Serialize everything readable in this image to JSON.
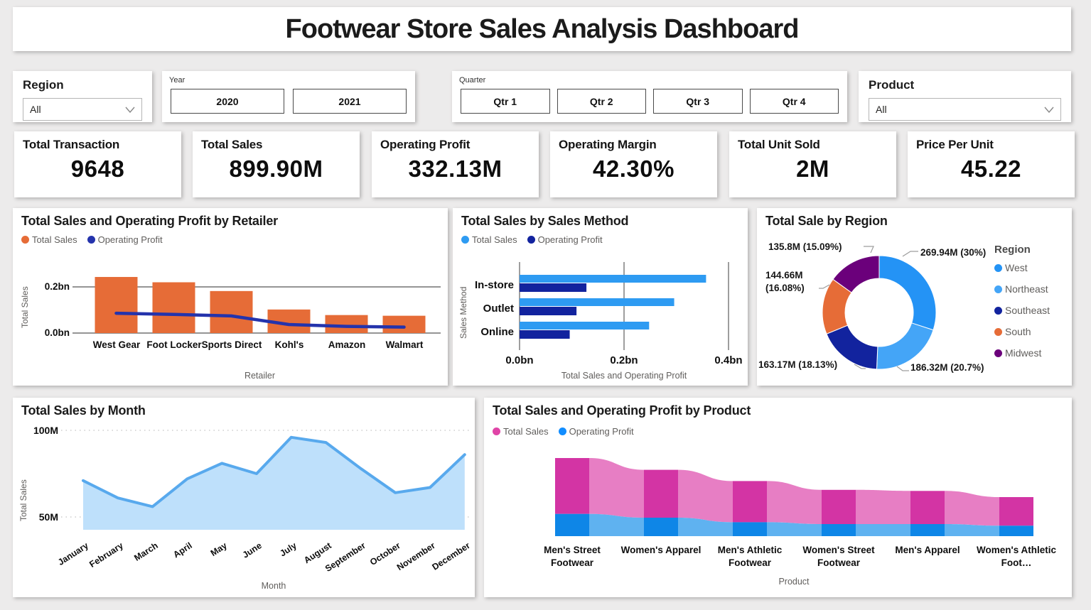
{
  "title": "Footwear Store Sales Analysis Dashboard",
  "filters": {
    "region": {
      "label": "Region",
      "value": "All"
    },
    "year": {
      "label": "Year",
      "options": [
        "2020",
        "2021"
      ]
    },
    "quarter": {
      "label": "Quarter",
      "options": [
        "Qtr 1",
        "Qtr 2",
        "Qtr 3",
        "Qtr 4"
      ]
    },
    "product": {
      "label": "Product",
      "value": "All"
    }
  },
  "kpis": [
    {
      "label": "Total Transaction",
      "value": "9648"
    },
    {
      "label": "Total Sales",
      "value": "899.90M"
    },
    {
      "label": "Operating Profit",
      "value": "332.13M"
    },
    {
      "label": "Operating Margin",
      "value": "42.30%"
    },
    {
      "label": "Total Unit Sold",
      "value": "2M"
    },
    {
      "label": "Price Per Unit",
      "value": "45.22"
    }
  ],
  "colors": {
    "page_bg": "#ECEBEB",
    "card_bg": "#FFFFFF",
    "text_dark": "#1B1B1B",
    "text_gray": "#605E5C"
  },
  "chart_data": [
    {
      "id": "retailer",
      "type": "bar",
      "title": "Total Sales and Operating Profit by Retailer",
      "categories": [
        "West Gear",
        "Foot Locker",
        "Sports Direct",
        "Kohl's",
        "Amazon",
        "Walmart"
      ],
      "series": [
        {
          "name": "Total Sales",
          "type": "bar",
          "color": "#E66C37",
          "values_bn": [
            0.243,
            0.22,
            0.182,
            0.102,
            0.078,
            0.075
          ]
        },
        {
          "name": "Operating Profit",
          "type": "line",
          "color": "#2433AC",
          "values_bn": [
            0.086,
            0.081,
            0.074,
            0.037,
            0.029,
            0.026
          ]
        }
      ],
      "ylabel": "Total Sales",
      "xlabel": "Retailer",
      "yticks": [
        "0.2bn",
        "0.0bn"
      ],
      "ytick_values": [
        0.2,
        0.0
      ],
      "ylim": [
        0,
        0.31
      ],
      "grid": true
    },
    {
      "id": "sales_method",
      "type": "bar",
      "title": "Total Sales by Sales Method",
      "categories": [
        "In-store",
        "Outlet",
        "Online"
      ],
      "series": [
        {
          "name": "Total Sales",
          "color": "#2E9BF2",
          "values_bn": [
            0.357,
            0.296,
            0.248
          ]
        },
        {
          "name": "Operating Profit",
          "color": "#12239E",
          "values_bn": [
            0.128,
            0.109,
            0.096
          ]
        }
      ],
      "orientation": "horizontal",
      "ylabel": "Sales Method",
      "xlabel": "Total Sales and Operating Profit",
      "xticks": [
        "0.0bn",
        "0.2bn",
        "0.4bn"
      ],
      "xtick_values": [
        0,
        0.2,
        0.4
      ],
      "xlim": [
        0,
        0.4
      ],
      "grid": true
    },
    {
      "id": "region",
      "type": "pie",
      "title": "Total Sale by Region",
      "legend_title": "Region",
      "legend_position": "right",
      "slices": [
        {
          "name": "West",
          "value_m": 269.94,
          "pct": 30,
          "callout": "269.94M (30%)",
          "color": "#2493F5"
        },
        {
          "name": "Northeast",
          "value_m": 186.32,
          "pct": 20.7,
          "callout": "186.32M (20.7%)",
          "color": "#44A5F7"
        },
        {
          "name": "Southeast",
          "value_m": 163.17,
          "pct": 18.13,
          "callout": "163.17M (18.13%)",
          "color": "#12239E"
        },
        {
          "name": "South",
          "value_m": 144.66,
          "pct": 16.08,
          "callout": "144.66M (16.08%)",
          "color": "#E66C37"
        },
        {
          "name": "Midwest",
          "value_m": 135.8,
          "pct": 15.09,
          "callout": "135.8M (15.09%)",
          "color": "#6B007B"
        }
      ]
    },
    {
      "id": "month",
      "type": "area",
      "title": "Total Sales by Month",
      "categories": [
        "January",
        "February",
        "March",
        "April",
        "May",
        "June",
        "July",
        "August",
        "September",
        "October",
        "November",
        "December"
      ],
      "values_m": [
        71,
        61,
        56,
        72,
        81,
        75,
        96,
        93,
        78,
        64,
        67,
        86
      ],
      "ylabel": "Total Sales",
      "xlabel": "Month",
      "yticks": [
        "100M",
        "50M"
      ],
      "ytick_values": [
        100,
        50
      ],
      "ylim": [
        42,
        105
      ],
      "line_color": "#58A9ED",
      "fill_color": "#BEE0FB",
      "grid": "dotted"
    },
    {
      "id": "product",
      "type": "area",
      "subtype": "ribbon-stacked",
      "title": "Total Sales and Operating Profit by Product",
      "categories": [
        "Men's Street Footwear",
        "Women's Apparel",
        "Men's Athletic Footwear",
        "Women's Street Footwear",
        "Men's Apparel",
        "Women's Athletic Foot…"
      ],
      "series": [
        {
          "name": "Total Sales",
          "color": "#E044A7",
          "column_color": "#D334A4",
          "ribbon_color": "#E77EC4",
          "values_m": [
            209,
            179,
            154,
            128,
            124,
            107
          ]
        },
        {
          "name": "Operating Profit",
          "color": "#118DFF",
          "column_color": "#0E86E7",
          "ribbon_color": "#5FB2F0",
          "values_m": [
            83,
            69,
            52,
            45,
            45,
            39
          ]
        }
      ],
      "xlabel": "Product"
    }
  ]
}
